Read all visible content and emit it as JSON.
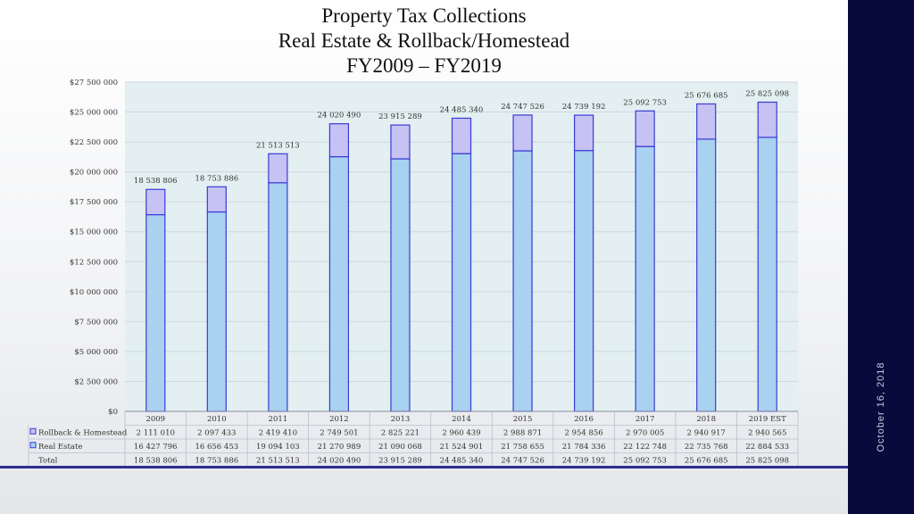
{
  "slide": {
    "title_lines": [
      "Property Tax Collections",
      "Real Estate & Rollback/Homestead",
      "FY2009 – FY2019"
    ],
    "date": "October 16, 2018"
  },
  "chart_data": {
    "type": "bar",
    "stacked": true,
    "categories": [
      "2009",
      "2010",
      "2011",
      "2012",
      "2013",
      "2014",
      "2015",
      "2016",
      "2017",
      "2018",
      "2019 EST"
    ],
    "series": [
      {
        "name": "Real Estate",
        "color": "#a9d1f0",
        "values": [
          16427796,
          16656453,
          19094103,
          21270989,
          21090068,
          21524901,
          21758655,
          21784336,
          22122748,
          22735768,
          22884533
        ],
        "labels": [
          "16 427 796",
          "16 656 453",
          "19 094 103",
          "21 270 989",
          "21 090 068",
          "21 524 901",
          "21 758 655",
          "21 784 336",
          "22 122 748",
          "22 735 768",
          "22 884 533"
        ]
      },
      {
        "name": "Rollback & Homestead",
        "color": "#c6c2f4",
        "values": [
          2111010,
          2097433,
          2419410,
          2749501,
          2825221,
          2960439,
          2988871,
          2954856,
          2970005,
          2940917,
          2940565
        ],
        "labels": [
          "2 111 010",
          "2 097 433",
          "2 419 410",
          "2 749 501",
          "2 825 221",
          "2 960 439",
          "2 988 871",
          "2 954 856",
          "2 970 005",
          "2 940 917",
          "2 940 565"
        ]
      }
    ],
    "totals_name": "Total",
    "totals": [
      18538806,
      18753886,
      21513513,
      24020490,
      23915289,
      24485340,
      24747526,
      24739192,
      25092753,
      25676685,
      25825098
    ],
    "total_labels": [
      "18 538 806",
      "18 753 886",
      "21 513 513",
      "24 020 490",
      "23 915 289",
      "24 485 340",
      "24 747 526",
      "24 739 192",
      "25 092 753",
      "25 676 685",
      "25 825 098"
    ],
    "ylim": [
      0,
      27500000
    ],
    "yticks": [
      0,
      2500000,
      5000000,
      7500000,
      10000000,
      12500000,
      15000000,
      17500000,
      20000000,
      22500000,
      25000000,
      27500000
    ],
    "ytick_labels": [
      "$0",
      "$2 500 000",
      "$5 000 000",
      "$7 500 000",
      "$10 000 000",
      "$12 500 000",
      "$15 000 000",
      "$17 500 000",
      "$20 000 000",
      "$22 500 000",
      "$25 000 000",
      "$27 500 000"
    ],
    "grid": true,
    "data_table": true,
    "plot_bg": "#e3eff0",
    "bar_edge": "#3a3ad6"
  }
}
